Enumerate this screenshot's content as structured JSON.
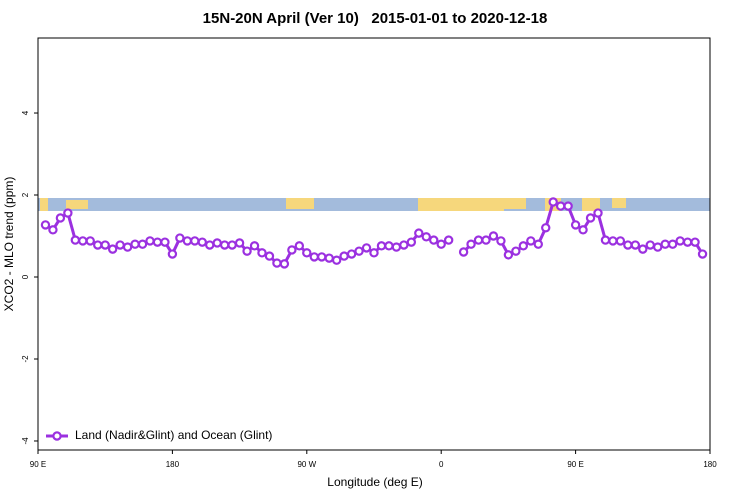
{
  "chart_data": {
    "type": "line",
    "title": "15N-20N April (Ver 10)   2015-01-01 to 2020-12-18",
    "x_label": "Longitude (deg E)",
    "y_label": "XCO2 - MLO trend (ppm)",
    "xlim": [
      90,
      540
    ],
    "xticks": [
      {
        "value": 90,
        "label": "90 E"
      },
      180,
      {
        "value": 270,
        "label": "90 W"
      },
      {
        "value": 360,
        "label": "0"
      },
      {
        "value": 450,
        "label": "90 E"
      },
      {
        "value": 540,
        "label": "180"
      }
    ],
    "ylim": [
      -4.22,
      5.83
    ],
    "yticks": [
      -4,
      -2,
      0,
      2,
      4
    ],
    "legend": "bottom-left",
    "series": [
      {
        "name": "Land (Nadir&Glint) and Ocean (Glint)",
        "color": "#9b30e0",
        "x": [
          95,
          100,
          105,
          110,
          115,
          120,
          125,
          130,
          135,
          140,
          145,
          150,
          155,
          160,
          165,
          170,
          175,
          180,
          185,
          190,
          195,
          200,
          205,
          210,
          215,
          220,
          225,
          230,
          235,
          240,
          245,
          250,
          255,
          260,
          265,
          270,
          275,
          280,
          285,
          290,
          295,
          300,
          305,
          310,
          315,
          320,
          325,
          330,
          335,
          340,
          345,
          350,
          355,
          360,
          365,
          370,
          375,
          380,
          385,
          390,
          395,
          400,
          405,
          410,
          415,
          420,
          425,
          430,
          435,
          440,
          445,
          450,
          455,
          460,
          465,
          470,
          475,
          480,
          485,
          490,
          495,
          500,
          505,
          510,
          515,
          520,
          525,
          530,
          535
        ],
        "values": [
          1.27,
          1.15,
          1.44,
          1.56,
          0.9,
          0.88,
          0.88,
          0.78,
          0.78,
          0.68,
          0.78,
          0.73,
          0.8,
          0.8,
          0.88,
          0.85,
          0.85,
          0.56,
          0.95,
          0.88,
          0.88,
          0.85,
          0.78,
          0.83,
          0.78,
          0.78,
          0.83,
          0.63,
          0.76,
          0.59,
          0.51,
          0.34,
          0.32,
          0.66,
          0.76,
          0.59,
          0.49,
          0.49,
          0.46,
          0.41,
          0.51,
          0.56,
          0.63,
          0.71,
          0.59,
          0.76,
          0.76,
          0.73,
          0.78,
          0.85,
          1.07,
          0.98,
          0.9,
          0.8,
          0.9,
          null,
          0.61,
          0.8,
          0.9,
          0.9,
          1.0,
          0.88,
          0.54,
          0.63,
          0.76,
          0.88,
          0.8,
          1.2,
          1.83,
          1.73,
          1.73,
          1.27,
          1.15,
          1.44,
          1.56,
          0.9,
          0.88,
          0.88,
          0.78,
          0.78,
          0.68,
          0.78,
          0.73,
          0.8,
          0.8,
          0.88,
          0.85,
          0.85,
          0.56
        ]
      }
    ]
  }
}
